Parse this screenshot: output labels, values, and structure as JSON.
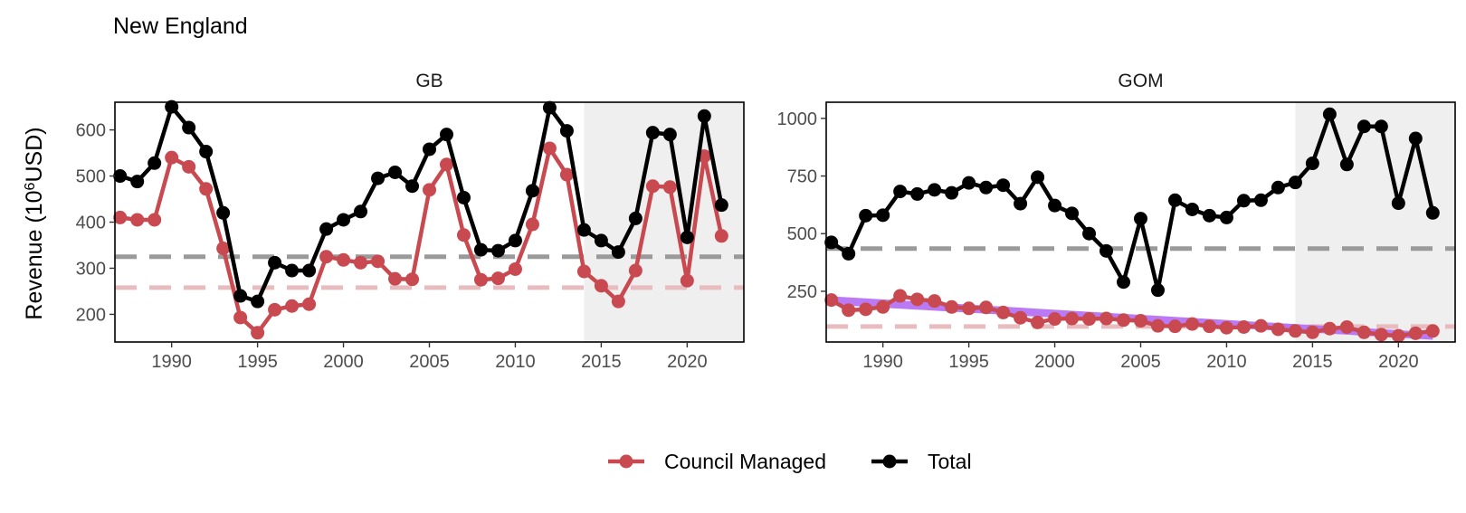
{
  "chart_data": {
    "type": "line",
    "title": "New England",
    "ylabel_main": "Revenue (10",
    "ylabel_sup": "6",
    "ylabel_end": "USD)",
    "colors": {
      "Council Managed": "#c8494f",
      "Total": "#000000",
      "trend_fill": "#b36cf5",
      "shade": "#efefef",
      "mean_total": "#9a9a9a",
      "mean_council": "#e8bcbe"
    },
    "xlim": [
      1986.7,
      2023.3
    ],
    "xticks": [
      1990,
      1995,
      2000,
      2005,
      2010,
      2015,
      2020
    ],
    "shade_from": 2014,
    "legend": [
      "Council Managed",
      "Total"
    ],
    "legend_position": "bottom",
    "panels": [
      {
        "name": "GB",
        "ylim": [
          140,
          660
        ],
        "yticks": [
          200,
          300,
          400,
          500,
          600
        ],
        "mean_total": 325,
        "mean_council": 258,
        "years": [
          1987,
          1988,
          1989,
          1990,
          1991,
          1992,
          1993,
          1994,
          1995,
          1996,
          1997,
          1998,
          1999,
          2000,
          2001,
          2002,
          2003,
          2004,
          2005,
          2006,
          2007,
          2008,
          2009,
          2010,
          2011,
          2012,
          2013,
          2014,
          2015,
          2016,
          2017,
          2018,
          2019,
          2020,
          2021,
          2022
        ],
        "series": [
          {
            "name": "Council Managed",
            "values": [
              410,
              405,
              405,
              540,
              520,
              472,
              343,
              193,
              160,
              210,
              218,
              222,
              325,
              318,
              312,
              315,
              277,
              276,
              470,
              525,
              372,
              275,
              278,
              298,
              395,
              560,
              503,
              293,
              262,
              228,
              295,
              478,
              476,
              273,
              543,
              370
            ]
          },
          {
            "name": "Total",
            "values": [
              500,
              488,
              528,
              650,
              605,
              553,
              420,
              240,
              228,
              312,
              295,
              295,
              385,
              405,
              423,
              495,
              508,
              478,
              558,
              590,
              453,
              340,
              338,
              360,
              468,
              648,
              598,
              383,
              360,
              335,
              408,
              594,
              590,
              367,
              630,
              437
            ]
          }
        ],
        "trend": null
      },
      {
        "name": "GOM",
        "ylim": [
          30,
          1070
        ],
        "yticks": [
          250,
          500,
          750,
          1000
        ],
        "mean_total": 435,
        "mean_council": 97,
        "years": [
          1987,
          1988,
          1989,
          1990,
          1991,
          1992,
          1993,
          1994,
          1995,
          1996,
          1997,
          1998,
          1999,
          2000,
          2001,
          2002,
          2003,
          2004,
          2005,
          2006,
          2007,
          2008,
          2009,
          2010,
          2011,
          2012,
          2013,
          2014,
          2015,
          2016,
          2017,
          2018,
          2019,
          2020,
          2021,
          2022
        ],
        "series": [
          {
            "name": "Council Managed",
            "values": [
              212,
              168,
              172,
              182,
              230,
              215,
              208,
              182,
              176,
              180,
              158,
              135,
              115,
              130,
              132,
              130,
              132,
              125,
              122,
              100,
              98,
              108,
              98,
              92,
              95,
              100,
              85,
              78,
              72,
              88,
              95,
              72,
              62,
              57,
              68,
              78
            ]
          },
          {
            "name": "Total",
            "values": [
              462,
              413,
              578,
              580,
              683,
              672,
              690,
              677,
              720,
              700,
              710,
              630,
              745,
              622,
              588,
              500,
              425,
              290,
              565,
              255,
              645,
              605,
              578,
              570,
              643,
              645,
              700,
              722,
              805,
              1018,
              800,
              965,
              965,
              632,
              913,
              590
            ]
          }
        ],
        "trend": {
          "x": [
            1987,
            2022
          ],
          "upper": [
            228,
            72
          ],
          "lower": [
            192,
            40
          ]
        }
      }
    ]
  }
}
